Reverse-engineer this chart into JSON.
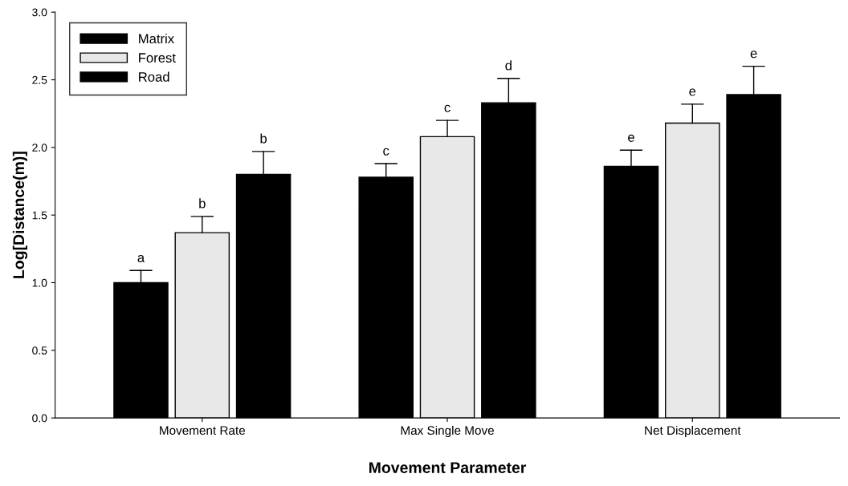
{
  "chart_data": {
    "type": "bar",
    "xlabel": "Movement Parameter",
    "ylabel": "Log[Distance(m)]",
    "categories": [
      "Movement Rate",
      "Max Single Move",
      "Net Displacement"
    ],
    "series": [
      {
        "name": "Matrix",
        "color": "#000000",
        "values": [
          1.0,
          1.78,
          1.86
        ],
        "errors": [
          [
            1.0,
            1.09
          ],
          [
            1.78,
            1.88
          ],
          [
            1.86,
            1.98
          ]
        ],
        "value_labels": [
          "a",
          "c",
          "e"
        ]
      },
      {
        "name": "Forest",
        "color": "#e8e8e8",
        "values": [
          1.37,
          2.08,
          2.18
        ],
        "errors": [
          [
            1.37,
            1.49
          ],
          [
            2.08,
            2.2
          ],
          [
            2.18,
            2.32
          ]
        ],
        "value_labels": [
          "b",
          "c",
          "e"
        ]
      },
      {
        "name": "Road",
        "color": "#000000",
        "values": [
          1.8,
          2.33,
          2.39
        ],
        "errors": [
          [
            1.8,
            1.97
          ],
          [
            2.33,
            2.51
          ],
          [
            2.39,
            2.6
          ]
        ],
        "value_labels": [
          "b",
          "d",
          "e"
        ]
      }
    ],
    "ylim": [
      0,
      3.0
    ],
    "yticks": [
      {
        "value": 0,
        "label": "0.0"
      },
      {
        "value": 0.5,
        "label": "0.5"
      },
      {
        "value": 1.0,
        "label": "1.0"
      },
      {
        "value": 1.5,
        "label": "1.5"
      },
      {
        "value": 2.0,
        "label": "2.0"
      },
      {
        "value": 2.5,
        "label": "2.5"
      },
      {
        "value": 3.0,
        "label": "3.0"
      }
    ],
    "legend": "top left",
    "grid": false
  }
}
